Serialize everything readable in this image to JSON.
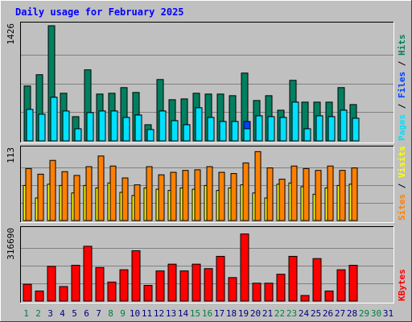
{
  "chart_data": {
    "type": "bar",
    "title": "Daily usage for February 2025",
    "categories": [
      "1",
      "2",
      "3",
      "4",
      "5",
      "6",
      "7",
      "8",
      "9",
      "10",
      "11",
      "12",
      "13",
      "14",
      "15",
      "16",
      "17",
      "18",
      "19",
      "20",
      "21",
      "22",
      "23",
      "24",
      "25",
      "26",
      "27",
      "28",
      "29",
      "30",
      "31"
    ],
    "weekend_days": [
      "1",
      "2",
      "8",
      "9",
      "15",
      "16",
      "22",
      "23",
      "29",
      "30"
    ],
    "colors": {
      "hits": "#008060",
      "files": "#0040ff",
      "pages": "#00e0ff",
      "visits": "#ffff00",
      "sites": "#ff8000",
      "kbytes": "#ff0000",
      "weekend_label": "#008040",
      "weekday_label": "#000080"
    },
    "panels": [
      {
        "id": "hits-files-pages",
        "ymax_label": "1426",
        "ylim": [
          0,
          1426
        ],
        "legend": [
          {
            "text": "Pages",
            "color": "#00e0ff"
          },
          {
            "text": " / ",
            "color": "#000000"
          },
          {
            "text": "Files",
            "color": "#0040ff"
          },
          {
            "text": " / ",
            "color": "#000000"
          },
          {
            "text": "Hits",
            "color": "#008060"
          }
        ],
        "series": [
          {
            "name": "Hits",
            "color": "#008060",
            "values": [
              680,
              820,
              1426,
              590,
              300,
              880,
              580,
              590,
              660,
              600,
              200,
              760,
              510,
              520,
              590,
              580,
              580,
              560,
              840,
              500,
              560,
              380,
              750,
              480,
              480,
              480,
              660,
              450,
              0,
              0,
              0
            ]
          },
          {
            "name": "Files",
            "color": "#0040ff",
            "values": [
              380,
              330,
              540,
              360,
              150,
              350,
              370,
              370,
              290,
              320,
              140,
              370,
              250,
              200,
              410,
              290,
              240,
              240,
              240,
              310,
              300,
              290,
              480,
              150,
              310,
              300,
              380,
              280,
              0,
              0,
              0
            ]
          },
          {
            "name": "Pages",
            "color": "#00e0ff",
            "values": [
              390,
              330,
              540,
              370,
              150,
              350,
              370,
              370,
              290,
              320,
              140,
              370,
              250,
              200,
              410,
              290,
              240,
              240,
              150,
              310,
              300,
              290,
              480,
              150,
              310,
              300,
              380,
              280,
              0,
              0,
              0
            ]
          }
        ]
      },
      {
        "id": "visits-sites",
        "ymax_label": "113",
        "ylim": [
          0,
          113
        ],
        "legend": [
          {
            "text": "Sites",
            "color": "#ff8000"
          },
          {
            "text": " / ",
            "color": "#000000"
          },
          {
            "text": "Visits",
            "color": "#ffff00"
          }
        ],
        "series": [
          {
            "name": "Visits",
            "color": "#ffff00",
            "values": [
              56,
              36,
              58,
              56,
              44,
              56,
              52,
              60,
              45,
              40,
              52,
              50,
              48,
              52,
              50,
              56,
              48,
              52,
              57,
              44,
              36,
              58,
              60,
              54,
              42,
              52,
              56,
              58,
              0,
              0,
              0
            ]
          },
          {
            "name": "Sites",
            "color": "#ff8000",
            "values": [
              83,
              74,
              96,
              78,
              72,
              86,
              103,
              87,
              68,
              57,
              86,
              73,
              77,
              80,
              81,
              86,
              77,
              75,
              92,
              110,
              84,
              66,
              87,
              83,
              80,
              87,
              80,
              84,
              0,
              0,
              0
            ]
          }
        ]
      },
      {
        "id": "kbytes",
        "ymax_label": "316690",
        "ylim": [
          0,
          316690
        ],
        "legend": [
          {
            "text": "KBytes",
            "color": "#ff0000"
          }
        ],
        "series": [
          {
            "name": "KBytes",
            "color": "#ff0000",
            "values": [
              75000,
              45000,
              155000,
              65000,
              160000,
              245000,
              150000,
              85000,
              140000,
              225000,
              70000,
              135000,
              165000,
              135000,
              165000,
              145000,
              200000,
              105000,
              300000,
              80000,
              80000,
              120000,
              200000,
              25000,
              190000,
              45000,
              140000,
              160000,
              0,
              0,
              0
            ]
          }
        ]
      }
    ]
  }
}
